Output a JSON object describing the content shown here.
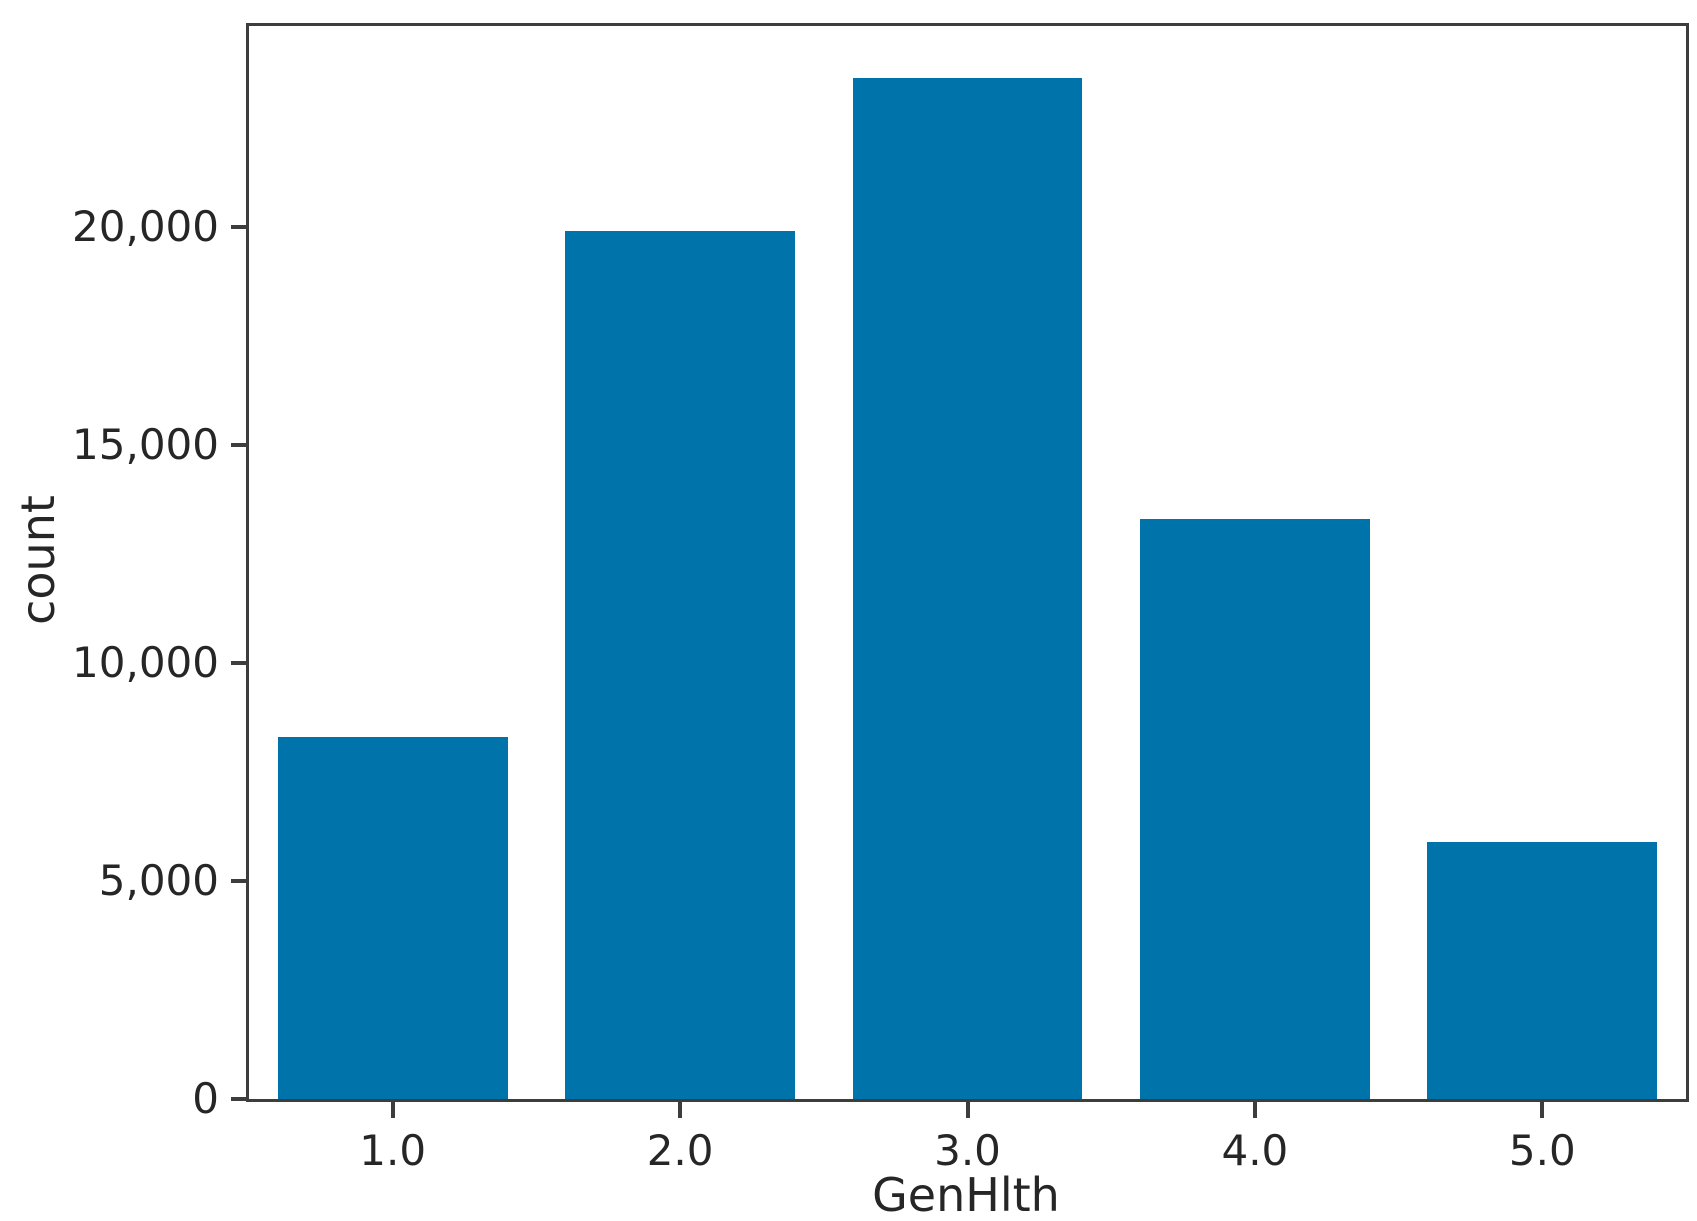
{
  "figure": {
    "background_color": "#ffffff",
    "spine_color": "#3d3d3d",
    "text_color": "#262626"
  },
  "chart_data": {
    "type": "bar",
    "title": "",
    "xlabel": "GenHlth",
    "ylabel": "count",
    "categories": [
      "1.0",
      "2.0",
      "3.0",
      "4.0",
      "5.0"
    ],
    "values": [
      8300,
      19900,
      23400,
      13300,
      5900
    ],
    "series": [
      {
        "name": "count",
        "values": [
          8300,
          19900,
          23400,
          13300,
          5900
        ]
      }
    ],
    "ylim": [
      0,
      24600
    ],
    "yticks": [
      0,
      5000,
      10000,
      15000,
      20000
    ],
    "ytick_labels": [
      "0",
      "5,000",
      "10,000",
      "15,000",
      "20,000"
    ],
    "bar_color": "#0074aa",
    "bar_width_fraction": 0.8,
    "grid": false,
    "legend_position": "none"
  }
}
